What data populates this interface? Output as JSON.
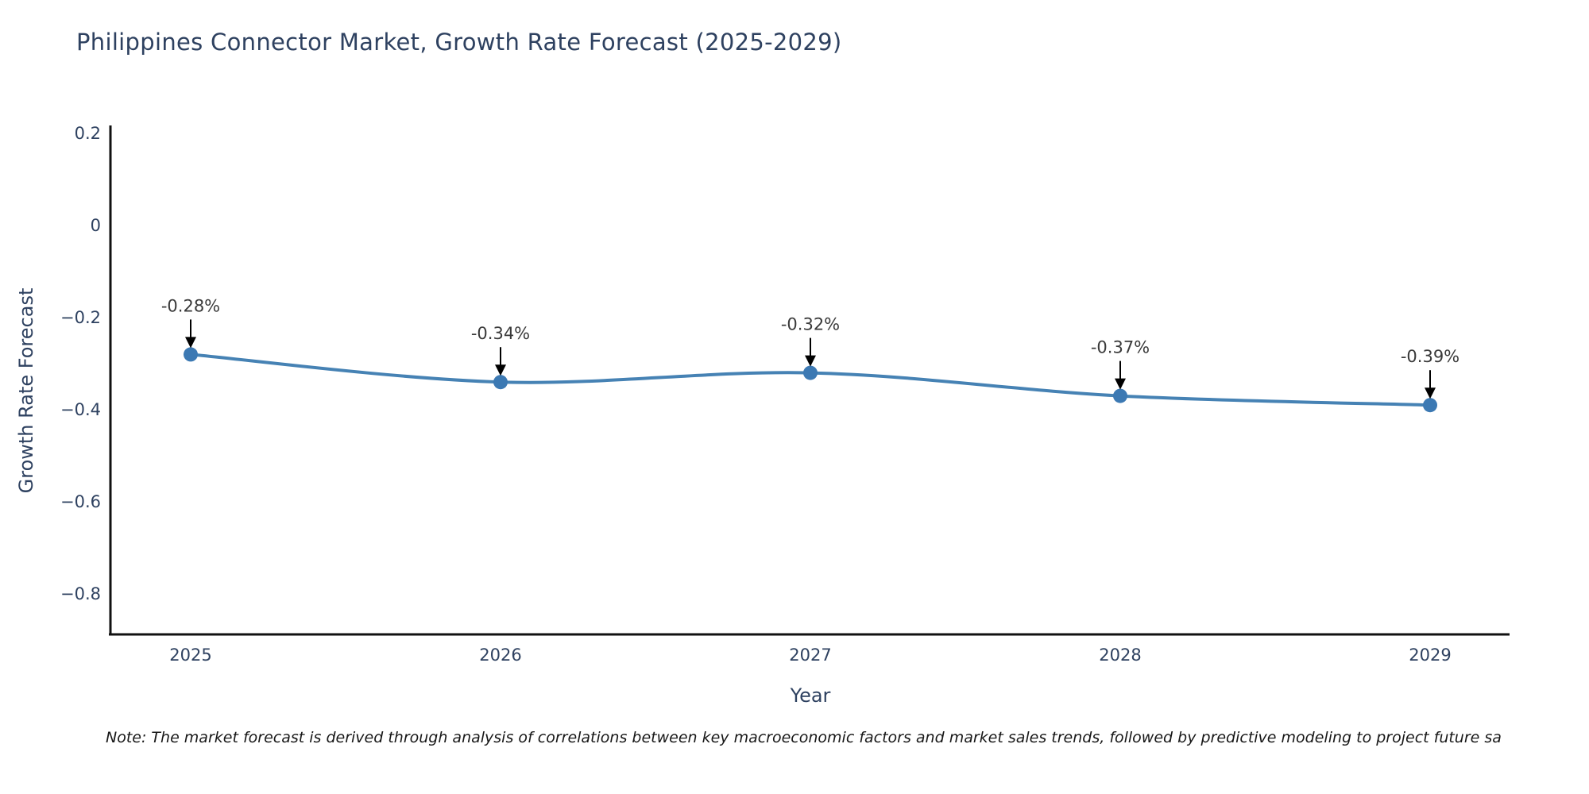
{
  "chart_data": {
    "type": "line",
    "title": "Philippines Connector Market, Growth Rate Forecast (2025-2029)",
    "xlabel": "Year",
    "ylabel": "Growth Rate Forecast",
    "note": "Note: The market forecast is derived through analysis of correlations between key macroeconomic factors and market sales trends, followed by predictive modeling to project future sa",
    "x": [
      2025,
      2026,
      2027,
      2028,
      2029
    ],
    "series": [
      {
        "name": "Growth Rate Forecast",
        "values": [
          -0.28,
          -0.34,
          -0.32,
          -0.37,
          -0.39
        ]
      }
    ],
    "point_labels": [
      "-0.28%",
      "-0.34%",
      "-0.32%",
      "-0.37%",
      "-0.39%"
    ],
    "xticks": [
      "2025",
      "2026",
      "2027",
      "2028",
      "2029"
    ],
    "yticks": [
      "0.2",
      "0",
      "−0.2",
      "−0.4",
      "−0.6",
      "−0.8"
    ],
    "ytick_values": [
      0.2,
      0,
      -0.2,
      -0.4,
      -0.6,
      -0.8
    ],
    "ylim": [
      -0.888,
      0.217
    ],
    "grid": false,
    "legend_position": "none",
    "line_shape": "spline",
    "colors": {
      "line": "#4682b4",
      "marker": "#3c79b3",
      "axis": "#111111",
      "tick_text": "#2e4160",
      "annotation_text": "#3a3a3a",
      "annotation_arrow": "#000000"
    }
  }
}
